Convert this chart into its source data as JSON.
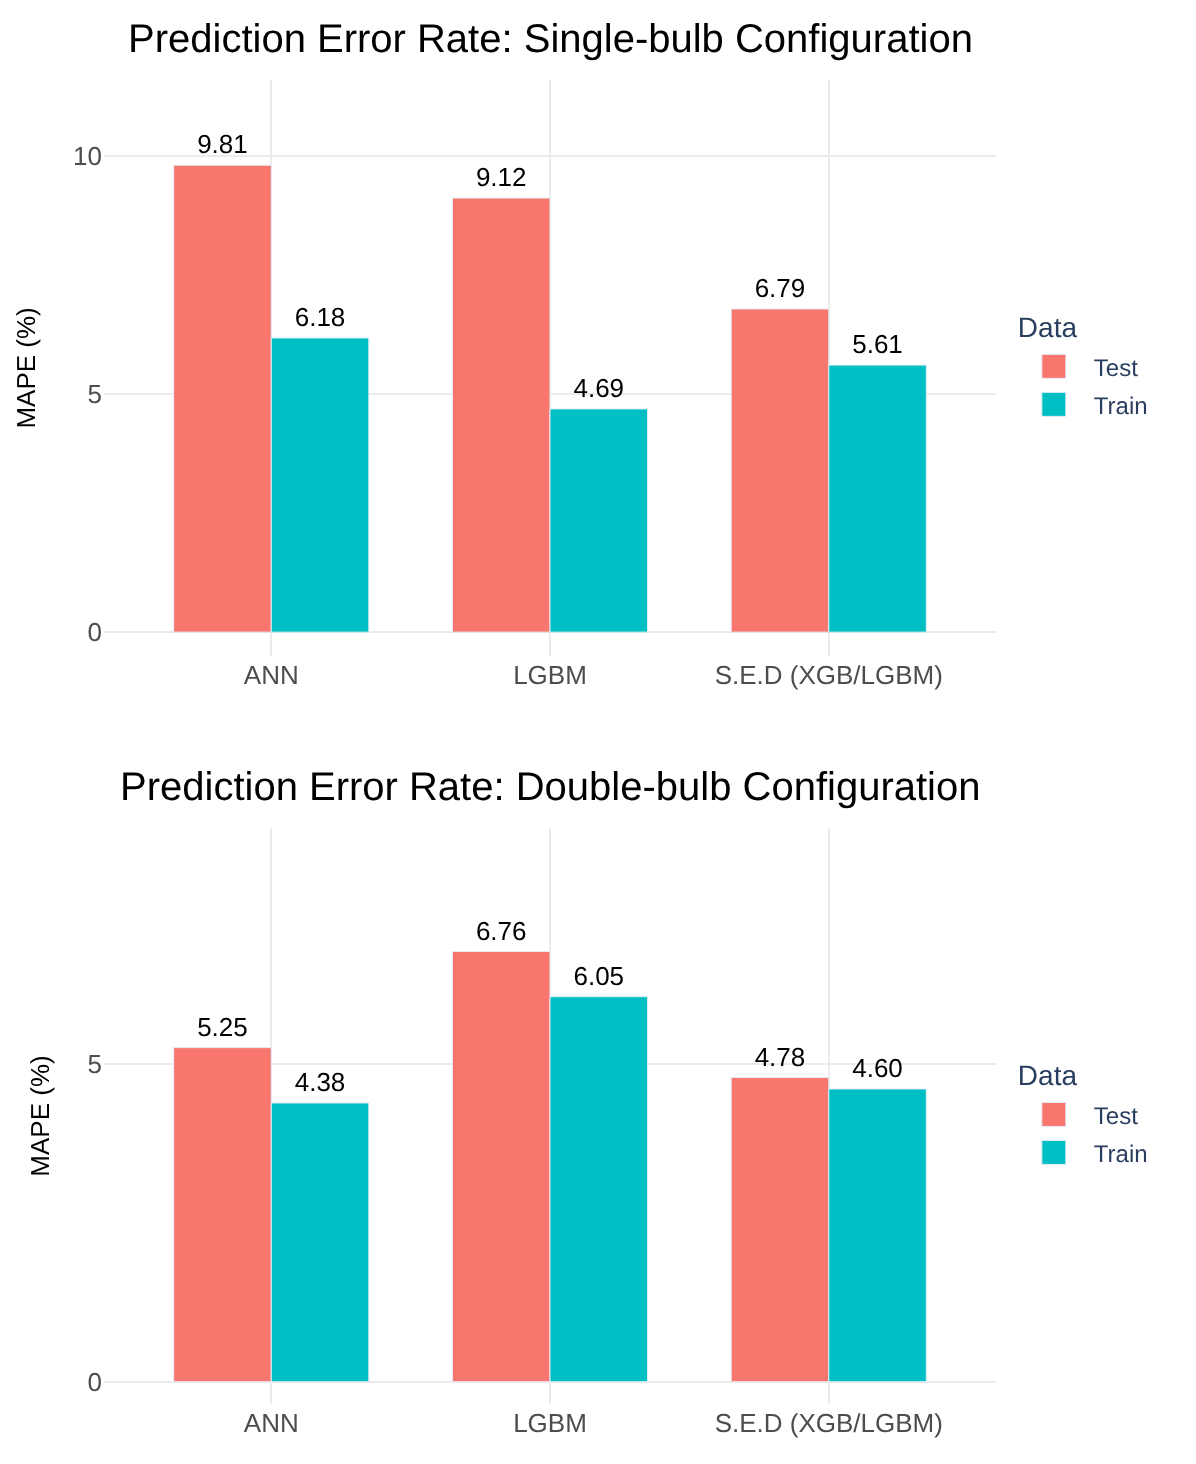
{
  "chart_data": [
    {
      "type": "bar",
      "title": "Prediction Error Rate: Single-bulb Configuration",
      "ylabel": "MAPE (%)",
      "legend_title": "Data",
      "legend": "right",
      "grid": true,
      "categories": [
        "ANN",
        "LGBM",
        "S.E.D (XGB/LGBM)"
      ],
      "series": [
        {
          "name": "Test",
          "color": "#f8766d",
          "values": [
            9.81,
            9.12,
            6.79
          ],
          "value_labels": [
            "9.81",
            "9.12",
            "6.79"
          ]
        },
        {
          "name": "Train",
          "color": "#00bfc4",
          "values": [
            6.18,
            4.69,
            5.61
          ],
          "value_labels": [
            "6.18",
            "4.69",
            "5.61"
          ]
        }
      ],
      "ylim": [
        -0.5,
        11.6
      ],
      "yticks": [
        0,
        5,
        10
      ]
    },
    {
      "type": "bar",
      "title": "Prediction Error Rate: Double-bulb Configuration",
      "ylabel": "MAPE (%)",
      "legend_title": "Data",
      "legend": "right",
      "grid": true,
      "categories": [
        "ANN",
        "LGBM",
        "S.E.D (XGB/LGBM)"
      ],
      "series": [
        {
          "name": "Test",
          "color": "#f8766d",
          "values": [
            5.25,
            6.76,
            4.78
          ],
          "value_labels": [
            "5.25",
            "6.76",
            "4.78"
          ]
        },
        {
          "name": "Train",
          "color": "#00bfc4",
          "values": [
            4.38,
            6.05,
            4.6
          ],
          "value_labels": [
            "4.38",
            "6.05",
            "4.60"
          ]
        }
      ],
      "ylim": [
        -0.35,
        8.7
      ],
      "yticks": [
        0,
        5
      ]
    }
  ]
}
